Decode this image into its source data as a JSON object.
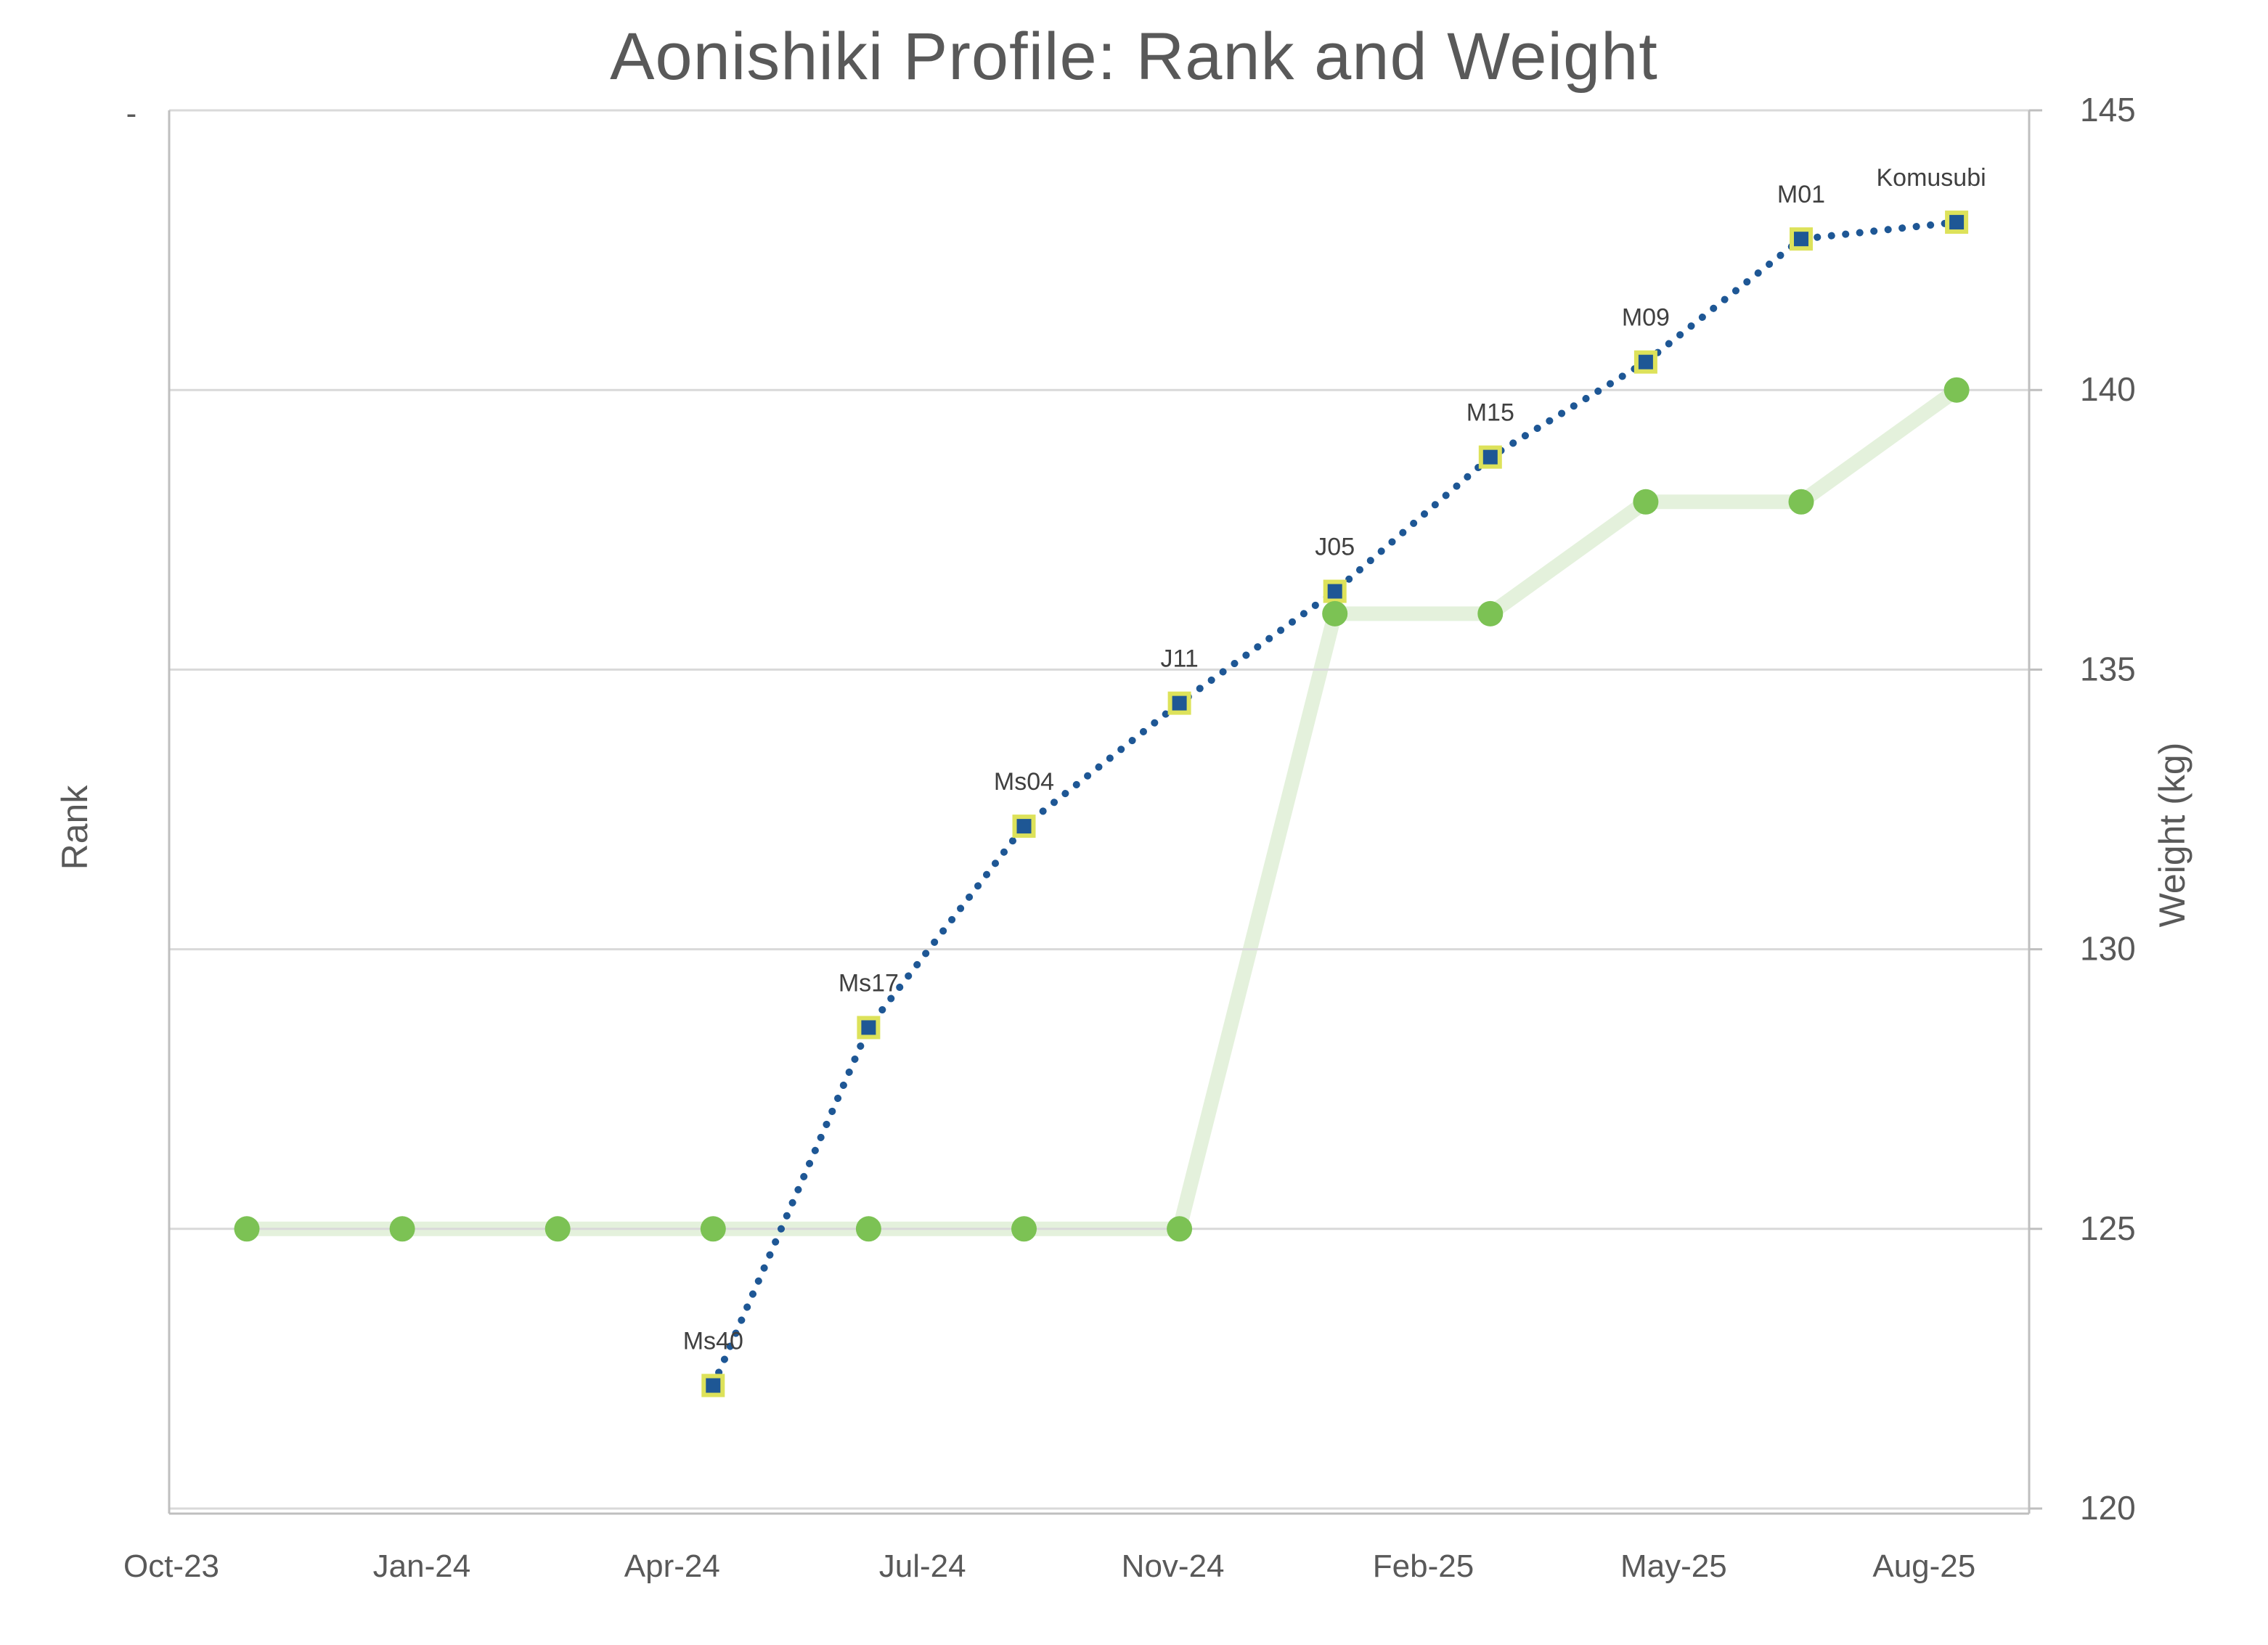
{
  "title": "Aonishiki Profile: Rank and Weight",
  "left_axis": {
    "title": "Rank",
    "tick_label": "-"
  },
  "right_axis": {
    "title": "Weight (kg)"
  },
  "colors": {
    "text_gray": "#595959",
    "gridline": "#D9D9D9",
    "axis_line": "#BFBFBF",
    "rank_blue": "#1E5795",
    "rank_marker_outline": "#DDE25A",
    "weight_green_marker": "#7CC254",
    "weight_line_pale": "#E2F0D9",
    "data_label_gray": "#404040"
  },
  "chart_data": {
    "type": "line",
    "title": "Aonishiki Profile: Rank and Weight",
    "xlabel": "",
    "ylabel": "Rank",
    "y2label": "Weight (kg)",
    "grid": true,
    "legend": false,
    "x_tick_labels": [
      "Oct-23",
      "Jan-24",
      "Apr-24",
      "Jul-24",
      "Nov-24",
      "Feb-25",
      "May-25",
      "Aug-25"
    ],
    "y2_ticks": [
      145,
      140,
      135,
      130,
      125,
      120
    ],
    "y2_range": [
      120,
      145
    ],
    "left_axis_tick_label": "-",
    "series": [
      {
        "name": "Weight (kg)",
        "axis": "right",
        "marker": "circle",
        "line_style": "solid-thick-pale",
        "x_index": [
          0,
          1,
          2,
          3,
          4,
          5,
          6,
          7,
          8,
          9,
          10,
          11
        ],
        "values": [
          125,
          125,
          125,
          125,
          125,
          125,
          125,
          136,
          136,
          138,
          138,
          140
        ]
      },
      {
        "name": "Rank",
        "axis": "left-hidden",
        "marker": "square",
        "line_style": "dotted",
        "points": [
          {
            "x_index": 3,
            "label": "Ms40",
            "level_on_weight_scale": 122.2
          },
          {
            "x_index": 4,
            "label": "Ms17",
            "level_on_weight_scale": 128.6
          },
          {
            "x_index": 5,
            "label": "Ms04",
            "level_on_weight_scale": 132.2
          },
          {
            "x_index": 6,
            "label": "J11",
            "level_on_weight_scale": 134.4
          },
          {
            "x_index": 7,
            "label": "J05",
            "level_on_weight_scale": 136.4
          },
          {
            "x_index": 8,
            "label": "M15",
            "level_on_weight_scale": 138.8
          },
          {
            "x_index": 9,
            "label": "M09",
            "level_on_weight_scale": 140.5
          },
          {
            "x_index": 10,
            "label": "M01",
            "level_on_weight_scale": 142.7
          },
          {
            "x_index": 11,
            "label": "Komusubi",
            "level_on_weight_scale": 143.0
          }
        ]
      }
    ]
  }
}
